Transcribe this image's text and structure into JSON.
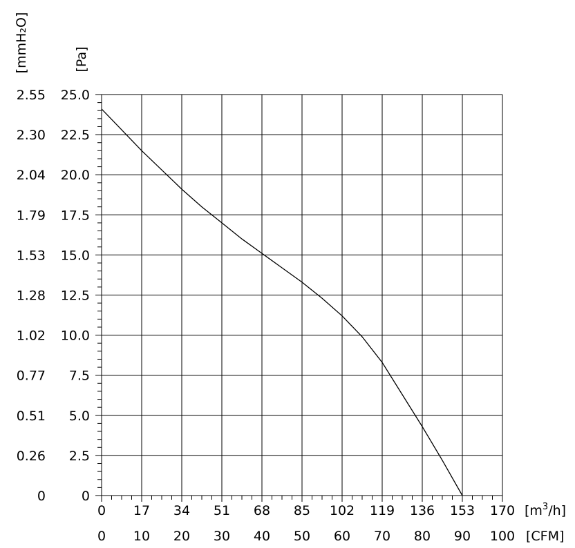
{
  "chart_data": {
    "type": "line",
    "title": "",
    "y_axis_left_outer": {
      "unit": "[mmH₂O]",
      "ticks": [
        "0",
        "0.26",
        "0.51",
        "0.77",
        "1.02",
        "1.28",
        "1.53",
        "1.79",
        "2.04",
        "2.30",
        "2.55"
      ]
    },
    "y_axis_left_inner": {
      "unit": "[Pa]",
      "ticks": [
        "0",
        "2.5",
        "5.0",
        "7.5",
        "10.0",
        "12.5",
        "15.0",
        "17.5",
        "20.0",
        "22.5",
        "25.0"
      ],
      "range": [
        0,
        25
      ]
    },
    "x_axis_m3h": {
      "unit_base": "[m",
      "unit_sup": "3",
      "unit_tail": "/h]",
      "ticks": [
        "0",
        "17",
        "34",
        "51",
        "68",
        "85",
        "102",
        "119",
        "136",
        "153",
        "170"
      ],
      "range": [
        0,
        170
      ]
    },
    "x_axis_cfm": {
      "unit": "[CFM]",
      "ticks": [
        "0",
        "10",
        "20",
        "30",
        "40",
        "50",
        "60",
        "70",
        "80",
        "90",
        "100"
      ],
      "range": [
        0,
        100
      ]
    },
    "grid": true,
    "series": [
      {
        "x_unit": "CFM",
        "y_unit": "Pa",
        "points": [
          [
            0,
            24.1
          ],
          [
            5,
            22.8
          ],
          [
            10,
            21.5
          ],
          [
            15,
            20.3
          ],
          [
            20,
            19.1
          ],
          [
            25,
            18.0
          ],
          [
            30,
            17.0
          ],
          [
            35,
            16.0
          ],
          [
            40,
            15.1
          ],
          [
            45,
            14.2
          ],
          [
            50,
            13.3
          ],
          [
            55,
            12.3
          ],
          [
            60,
            11.2
          ],
          [
            65,
            9.9
          ],
          [
            70,
            8.3
          ],
          [
            75,
            6.3
          ],
          [
            80,
            4.3
          ],
          [
            85,
            2.2
          ],
          [
            90,
            0
          ]
        ]
      }
    ]
  }
}
